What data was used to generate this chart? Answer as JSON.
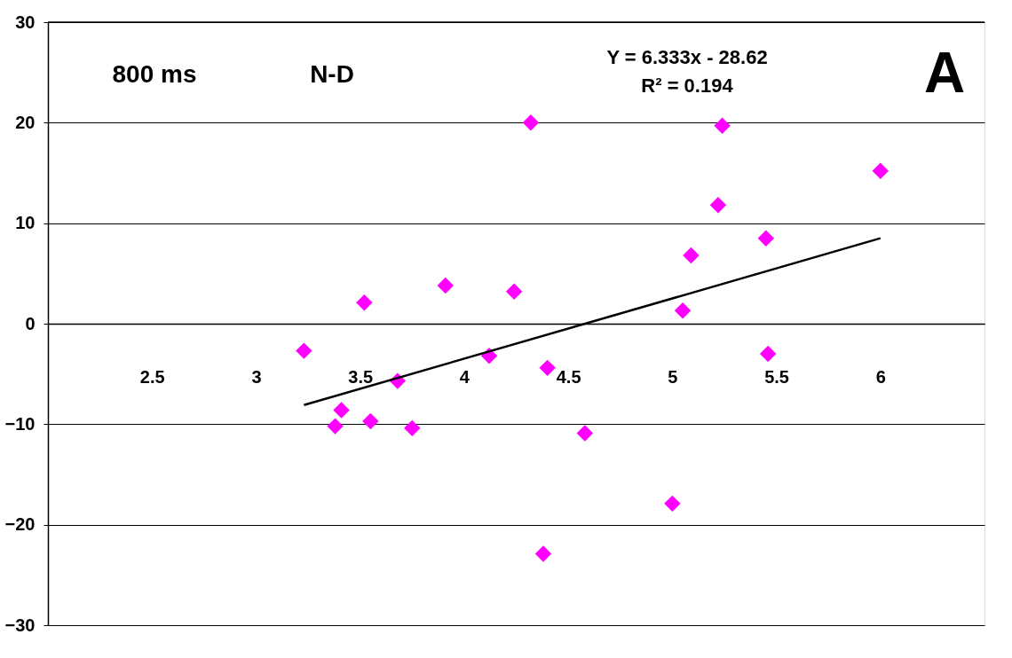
{
  "chart_data": {
    "type": "scatter",
    "xlim": [
      2,
      6.5
    ],
    "ylim": [
      -30,
      30
    ],
    "xticks": [
      2.5,
      3,
      3.5,
      4,
      4.5,
      5,
      5.5,
      6
    ],
    "yticks": [
      -30,
      -20,
      -10,
      0,
      10,
      20,
      30
    ],
    "grid": "y",
    "annotations": [
      "800 ms",
      "N-D",
      "Y = 6.333x - 28.62",
      "R² = 0.194",
      "A"
    ],
    "series": [
      {
        "color": "#ff00ff",
        "marker": "diamond",
        "x": [
          3.23,
          3.41,
          3.38,
          3.52,
          3.55,
          3.68,
          3.75,
          3.91,
          4.12,
          4.24,
          4.32,
          4.4,
          4.38,
          4.58,
          5.0,
          5.05,
          5.09,
          5.22,
          5.24,
          5.45,
          5.46,
          6.0
        ],
        "values": [
          -2.7,
          -8.6,
          -10.2,
          2.1,
          -9.7,
          -5.7,
          -10.4,
          3.8,
          -3.2,
          3.2,
          20.0,
          -4.4,
          -22.9,
          -10.9,
          -17.9,
          1.3,
          6.8,
          11.8,
          19.7,
          8.5,
          -3.0,
          15.2
        ]
      },
      {
        "type": "line",
        "color": "#000000",
        "x": [
          3.23,
          6.0
        ],
        "values": [
          -8.1,
          8.5
        ]
      }
    ]
  }
}
